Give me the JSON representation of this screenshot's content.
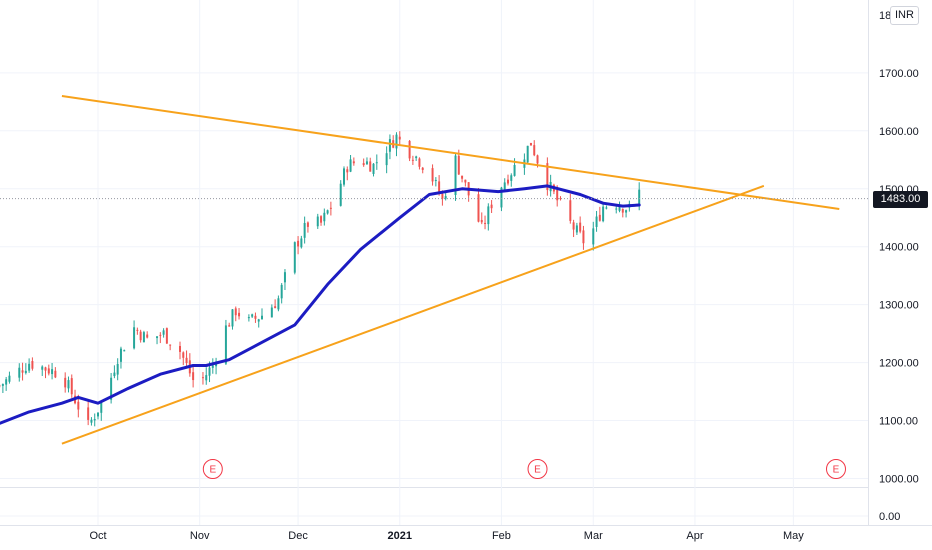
{
  "chart_data": {
    "type": "candlestick",
    "currency": "INR",
    "y_axis": {
      "position": "right",
      "ticks": [
        "1700.00",
        "1600.00",
        "1500.00",
        "1400.00",
        "1300.00",
        "1200.00",
        "1100.00",
        "1000.00",
        "0.00"
      ],
      "top_partial_label": "1800.00"
    },
    "x_axis": {
      "ticks": [
        {
          "label": "Oct",
          "bold": false
        },
        {
          "label": "Nov",
          "bold": false
        },
        {
          "label": "Dec",
          "bold": false
        },
        {
          "label": "2021",
          "bold": true
        },
        {
          "label": "Feb",
          "bold": false
        },
        {
          "label": "Mar",
          "bold": false
        },
        {
          "label": "Apr",
          "bold": false
        },
        {
          "label": "May",
          "bold": false
        }
      ]
    },
    "last_price": "1483.00",
    "price_anchors": [
      [
        "2020-09-01",
        1160
      ],
      [
        "2020-09-10",
        1200
      ],
      [
        "2020-09-20",
        1180
      ],
      [
        "2020-09-25",
        1125
      ],
      [
        "2020-09-28",
        1090
      ],
      [
        "2020-10-03",
        1140
      ],
      [
        "2020-10-07",
        1210
      ],
      [
        "2020-10-12",
        1260
      ],
      [
        "2020-10-16",
        1240
      ],
      [
        "2020-10-21",
        1250
      ],
      [
        "2020-10-26",
        1220
      ],
      [
        "2020-10-30",
        1170
      ],
      [
        "2020-11-01",
        1165
      ],
      [
        "2020-11-05",
        1195
      ],
      [
        "2020-11-08",
        1250
      ],
      [
        "2020-11-12",
        1290
      ],
      [
        "2020-11-16",
        1270
      ],
      [
        "2020-11-21",
        1285
      ],
      [
        "2020-11-25",
        1310
      ],
      [
        "2020-11-30",
        1400
      ],
      [
        "2020-12-04",
        1440
      ],
      [
        "2020-12-08",
        1440
      ],
      [
        "2020-12-12",
        1480
      ],
      [
        "2020-12-16",
        1540
      ],
      [
        "2020-12-20",
        1550
      ],
      [
        "2020-12-24",
        1540
      ],
      [
        "2020-12-28",
        1570
      ],
      [
        "2020-12-31",
        1590
      ],
      [
        "2021-01-02",
        1575
      ],
      [
        "2021-01-06",
        1555
      ],
      [
        "2021-01-10",
        1530
      ],
      [
        "2021-01-14",
        1480
      ],
      [
        "2021-01-18",
        1550
      ],
      [
        "2021-01-22",
        1490
      ],
      [
        "2021-01-26",
        1430
      ],
      [
        "2021-01-30",
        1490
      ],
      [
        "2021-02-04",
        1530
      ],
      [
        "2021-02-08",
        1560
      ],
      [
        "2021-02-10",
        1580
      ],
      [
        "2021-02-14",
        1520
      ],
      [
        "2021-02-18",
        1480
      ],
      [
        "2021-02-22",
        1440
      ],
      [
        "2021-02-26",
        1410
      ],
      [
        "2021-03-01",
        1430
      ],
      [
        "2021-03-04",
        1470
      ],
      [
        "2021-03-08",
        1475
      ],
      [
        "2021-03-12",
        1465
      ],
      [
        "2021-03-15",
        1495
      ]
    ],
    "series": [
      {
        "name": "",
        "type": "moving-average",
        "color": "#1c1cc2",
        "points": [
          [
            "2020-09-01",
            1095
          ],
          [
            "2020-09-10",
            1115
          ],
          [
            "2020-09-20",
            1130
          ],
          [
            "2020-09-25",
            1140
          ],
          [
            "2020-10-01",
            1130
          ],
          [
            "2020-10-10",
            1155
          ],
          [
            "2020-10-20",
            1180
          ],
          [
            "2020-10-30",
            1195
          ],
          [
            "2020-11-03",
            1195
          ],
          [
            "2020-11-10",
            1205
          ],
          [
            "2020-11-20",
            1235
          ],
          [
            "2020-11-30",
            1265
          ],
          [
            "2020-12-10",
            1335
          ],
          [
            "2020-12-20",
            1395
          ],
          [
            "2021-01-01",
            1450
          ],
          [
            "2021-01-10",
            1490
          ],
          [
            "2021-01-20",
            1500
          ],
          [
            "2021-01-31",
            1495
          ],
          [
            "2021-02-08",
            1500
          ],
          [
            "2021-02-15",
            1505
          ],
          [
            "2021-02-25",
            1490
          ],
          [
            "2021-03-04",
            1475
          ],
          [
            "2021-03-10",
            1470
          ],
          [
            "2021-03-15",
            1472
          ]
        ]
      }
    ],
    "trendlines": [
      {
        "name": "",
        "color": "#f7a21b",
        "from": [
          "2020-09-20",
          1660
        ],
        "to": [
          "2021-05-15",
          1465
        ]
      },
      {
        "name": "",
        "color": "#f7a21b",
        "from": [
          "2020-09-20",
          1060
        ],
        "to": [
          "2021-04-22",
          1505
        ]
      }
    ],
    "earnings_markers": [
      {
        "label": "E",
        "date": "2020-11-05"
      },
      {
        "label": "E",
        "date": "2021-02-12"
      },
      {
        "label": "E",
        "date": "2021-05-14"
      }
    ],
    "colors": {
      "up": "#26a69a",
      "down": "#ef5350",
      "trendline": "#f7a21b",
      "ma": "#1c1cc2",
      "earnings": "#f23645",
      "grid": "#f0f3fa",
      "axis_text": "#131722"
    }
  }
}
